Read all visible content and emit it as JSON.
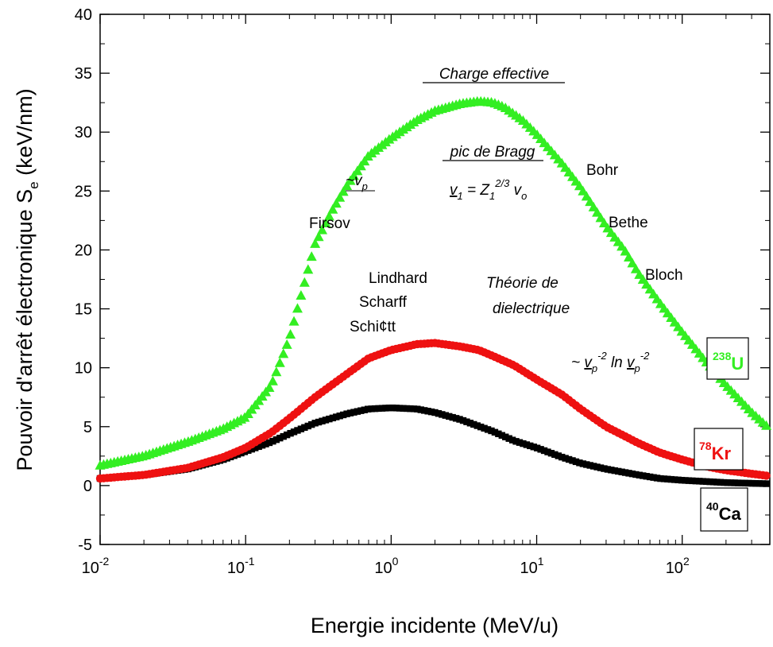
{
  "chart_data": {
    "type": "scatter",
    "xlabel": "Energie incidente (MeV/u)",
    "ylabel_main": "Pouvoir d'arrêt électronique  S",
    "ylabel_sub": "e",
    "ylabel_unit": " (keV/nm)",
    "x_scale": "log",
    "xlim": [
      0.01,
      400
    ],
    "ylim": [
      -5,
      40
    ],
    "x_ticks": [
      0.01,
      0.1,
      1,
      10,
      100
    ],
    "x_tick_bases": [
      "10",
      "10",
      "10",
      "10",
      "10"
    ],
    "x_tick_exps": [
      "-2",
      "-1",
      "0",
      "1",
      "2"
    ],
    "y_ticks": [
      -5,
      0,
      5,
      10,
      15,
      20,
      25,
      30,
      35,
      40
    ],
    "y_tick_labels": [
      "-5",
      "0",
      "5",
      "10",
      "15",
      "20",
      "25",
      "30",
      "35",
      "40"
    ],
    "grid": false,
    "series": [
      {
        "name_sup": "238",
        "name_main": "U",
        "color": "#33ee22",
        "marker": "triangle",
        "points": [
          [
            0.01,
            1.7
          ],
          [
            0.02,
            2.5
          ],
          [
            0.04,
            3.7
          ],
          [
            0.07,
            4.8
          ],
          [
            0.1,
            5.8
          ],
          [
            0.15,
            8.5
          ],
          [
            0.2,
            12.5
          ],
          [
            0.3,
            20.5
          ],
          [
            0.4,
            23.5
          ],
          [
            0.5,
            25.5
          ],
          [
            0.7,
            28
          ],
          [
            1,
            29.5
          ],
          [
            1.5,
            31
          ],
          [
            2,
            31.8
          ],
          [
            3,
            32.4
          ],
          [
            4,
            32.6
          ],
          [
            5,
            32.5
          ],
          [
            6,
            32.1
          ],
          [
            8,
            31
          ],
          [
            10,
            29.8
          ],
          [
            15,
            27.3
          ],
          [
            20,
            25.3
          ],
          [
            30,
            22
          ],
          [
            40,
            20
          ],
          [
            50,
            18
          ],
          [
            70,
            15.5
          ],
          [
            100,
            13
          ],
          [
            150,
            10.3
          ],
          [
            200,
            8.5
          ],
          [
            300,
            6.2
          ],
          [
            400,
            4.8
          ]
        ]
      },
      {
        "name_sup": "78",
        "name_main": "Kr",
        "color": "#ee1111",
        "marker": "circle",
        "points": [
          [
            0.01,
            0.6
          ],
          [
            0.02,
            0.9
          ],
          [
            0.04,
            1.5
          ],
          [
            0.07,
            2.4
          ],
          [
            0.1,
            3.2
          ],
          [
            0.15,
            4.5
          ],
          [
            0.2,
            5.7
          ],
          [
            0.3,
            7.5
          ],
          [
            0.5,
            9.5
          ],
          [
            0.7,
            10.8
          ],
          [
            1,
            11.5
          ],
          [
            1.5,
            12
          ],
          [
            2,
            12.1
          ],
          [
            3,
            11.8
          ],
          [
            4,
            11.5
          ],
          [
            5,
            11
          ],
          [
            7,
            10.2
          ],
          [
            10,
            9
          ],
          [
            15,
            7.7
          ],
          [
            20,
            6.5
          ],
          [
            30,
            5
          ],
          [
            50,
            3.6
          ],
          [
            70,
            2.8
          ],
          [
            100,
            2.2
          ],
          [
            150,
            1.6
          ],
          [
            200,
            1.3
          ],
          [
            300,
            1
          ],
          [
            400,
            0.8
          ]
        ]
      },
      {
        "name_sup": "40",
        "name_main": "Ca",
        "color": "#000000",
        "marker": "square",
        "points": [
          [
            0.01,
            0.6
          ],
          [
            0.02,
            0.9
          ],
          [
            0.04,
            1.4
          ],
          [
            0.07,
            2.2
          ],
          [
            0.1,
            2.9
          ],
          [
            0.15,
            3.7
          ],
          [
            0.2,
            4.4
          ],
          [
            0.3,
            5.3
          ],
          [
            0.5,
            6.1
          ],
          [
            0.7,
            6.5
          ],
          [
            1,
            6.6
          ],
          [
            1.5,
            6.5
          ],
          [
            2,
            6.2
          ],
          [
            3,
            5.6
          ],
          [
            5,
            4.6
          ],
          [
            7,
            3.8
          ],
          [
            10,
            3.2
          ],
          [
            15,
            2.4
          ],
          [
            20,
            1.9
          ],
          [
            30,
            1.4
          ],
          [
            50,
            0.9
          ],
          [
            70,
            0.6
          ],
          [
            100,
            0.45
          ],
          [
            200,
            0.25
          ],
          [
            400,
            0.15
          ]
        ]
      }
    ],
    "annotations": {
      "charge_effective": "Charge effective",
      "pic_de_bragg": "pic de Bragg",
      "bragg_v1": "v",
      "bragg_v1_sub": "1",
      "bragg_eq": " = ",
      "bragg_z1": "Z",
      "bragg_z1_sub": "1",
      "bragg_z1_sup": "2/3",
      "bragg_vo": "v",
      "bragg_vo_sub": "o",
      "tilde_vp": "~v",
      "tilde_vp_sub": "p",
      "firsov": "Firsov",
      "lindhard": "Lindhard",
      "scharff": "Scharff",
      "schiott": "Schi¢tt",
      "bohr": "Bohr",
      "bethe": "Bethe",
      "bloch": "Bloch",
      "theorie_1": "Théorie de",
      "theorie_2": "dielectrique",
      "asym_prefix": "~ ",
      "asym_v": "v",
      "asym_sub": "p",
      "asym_sup": "-2",
      "asym_ln": " ln ",
      "asym_v2": "v",
      "asym_sub2": "p",
      "asym_sup2": "-2"
    }
  }
}
